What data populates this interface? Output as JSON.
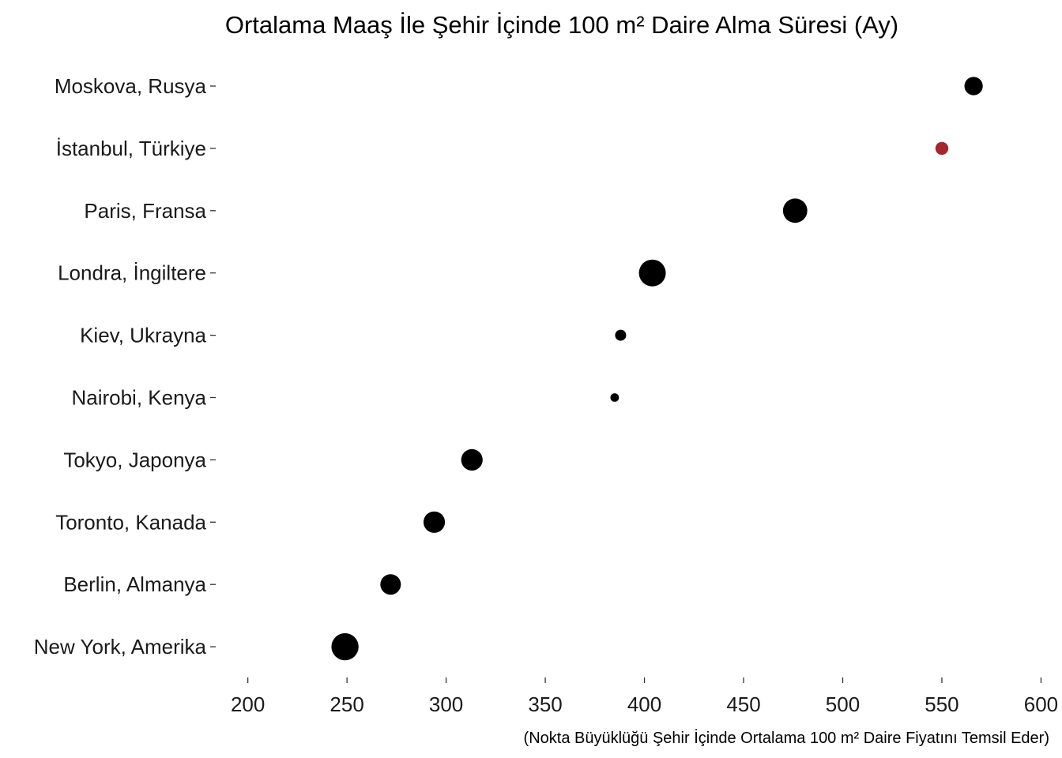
{
  "chart_data": {
    "type": "scatter",
    "title": "Ortalama Maaş İle Şehir İçinde 100 m² Daire Alma Süresi (Ay)",
    "caption": "(Nokta Büyüklüğü Şehir İçinde Ortalama 100 m² Daire Fiyatını Temsil Eder)",
    "xlabel": "",
    "ylabel": "",
    "xlim": [
      185,
      605
    ],
    "x_ticks": [
      200,
      250,
      300,
      350,
      400,
      450,
      500,
      550,
      600
    ],
    "grid": false,
    "legend": "none",
    "colors": {
      "default": "#000000",
      "highlight": "#a3282e"
    },
    "size_encoding": "relative 100 m² apartment price (unitless, estimated from dot size)",
    "points": [
      {
        "city": "Moskova, Rusya",
        "x": 566,
        "size": 0.43,
        "highlight": false
      },
      {
        "city": "İstanbul, Türkiye",
        "x": 550,
        "size": 0.26,
        "highlight": true
      },
      {
        "city": "Paris, Fransa",
        "x": 476,
        "size": 0.62,
        "highlight": false
      },
      {
        "city": "Londra, İngiltere",
        "x": 404,
        "size": 0.7,
        "highlight": false
      },
      {
        "city": "Kiev, Ukrayna",
        "x": 388,
        "size": 0.2,
        "highlight": false
      },
      {
        "city": "Nairobi, Kenya",
        "x": 385,
        "size": 0.12,
        "highlight": false
      },
      {
        "city": "Tokyo, Japonya",
        "x": 313,
        "size": 0.53,
        "highlight": false
      },
      {
        "city": "Toronto, Kanada",
        "x": 294,
        "size": 0.53,
        "highlight": false
      },
      {
        "city": "Berlin, Almanya",
        "x": 272,
        "size": 0.5,
        "highlight": false
      },
      {
        "city": "New York, Amerika",
        "x": 249,
        "size": 0.71,
        "highlight": false
      }
    ]
  }
}
